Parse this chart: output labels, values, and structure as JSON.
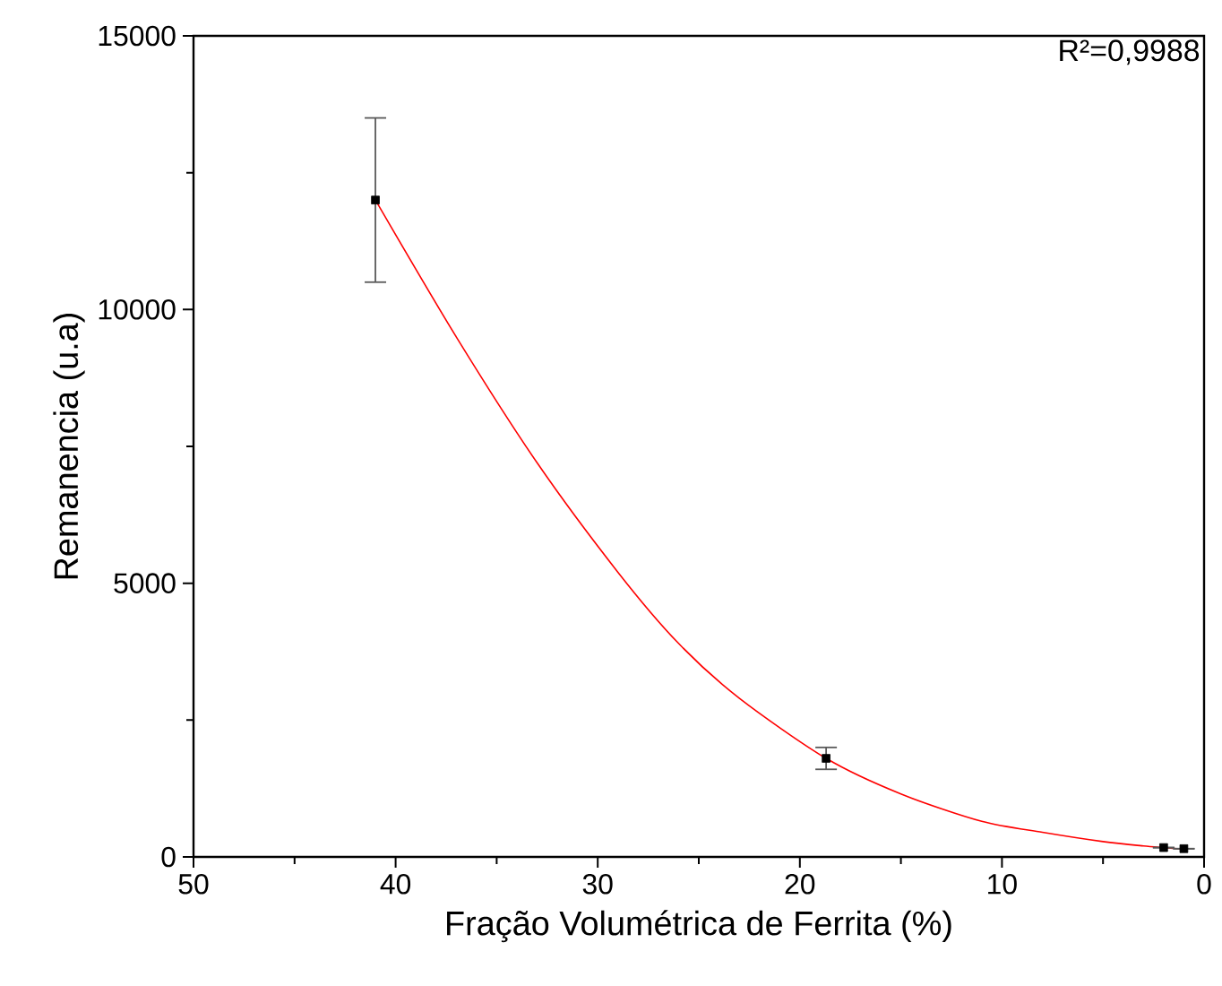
{
  "chart_data": {
    "type": "scatter",
    "xlabel": "Fração Volumétrica de Ferrita (%)",
    "ylabel": "Remanencia (u.a)",
    "annotations": [
      "R²=0,9988"
    ],
    "xlim": [
      50,
      0
    ],
    "ylim": [
      0,
      15000
    ],
    "xticks": [
      50,
      40,
      30,
      20,
      10,
      0
    ],
    "yticks": [
      0,
      5000,
      10000,
      15000
    ],
    "grid": false,
    "series": [
      {
        "type": "line",
        "color": "#ff0000",
        "x": [
          41,
          37,
          33,
          29,
          26,
          23,
          18.7,
          15,
          11,
          8,
          5,
          3,
          1
        ],
        "values": [
          12000,
          9500,
          7200,
          5200,
          3900,
          2900,
          1800,
          1150,
          650,
          450,
          280,
          200,
          140
        ]
      },
      {
        "color": "#000000",
        "marker": "square",
        "x": [
          41,
          18.7,
          2,
          1
        ],
        "values": [
          12000,
          1800,
          170,
          150
        ],
        "errors": [
          1500,
          200,
          null,
          null
        ]
      }
    ]
  }
}
